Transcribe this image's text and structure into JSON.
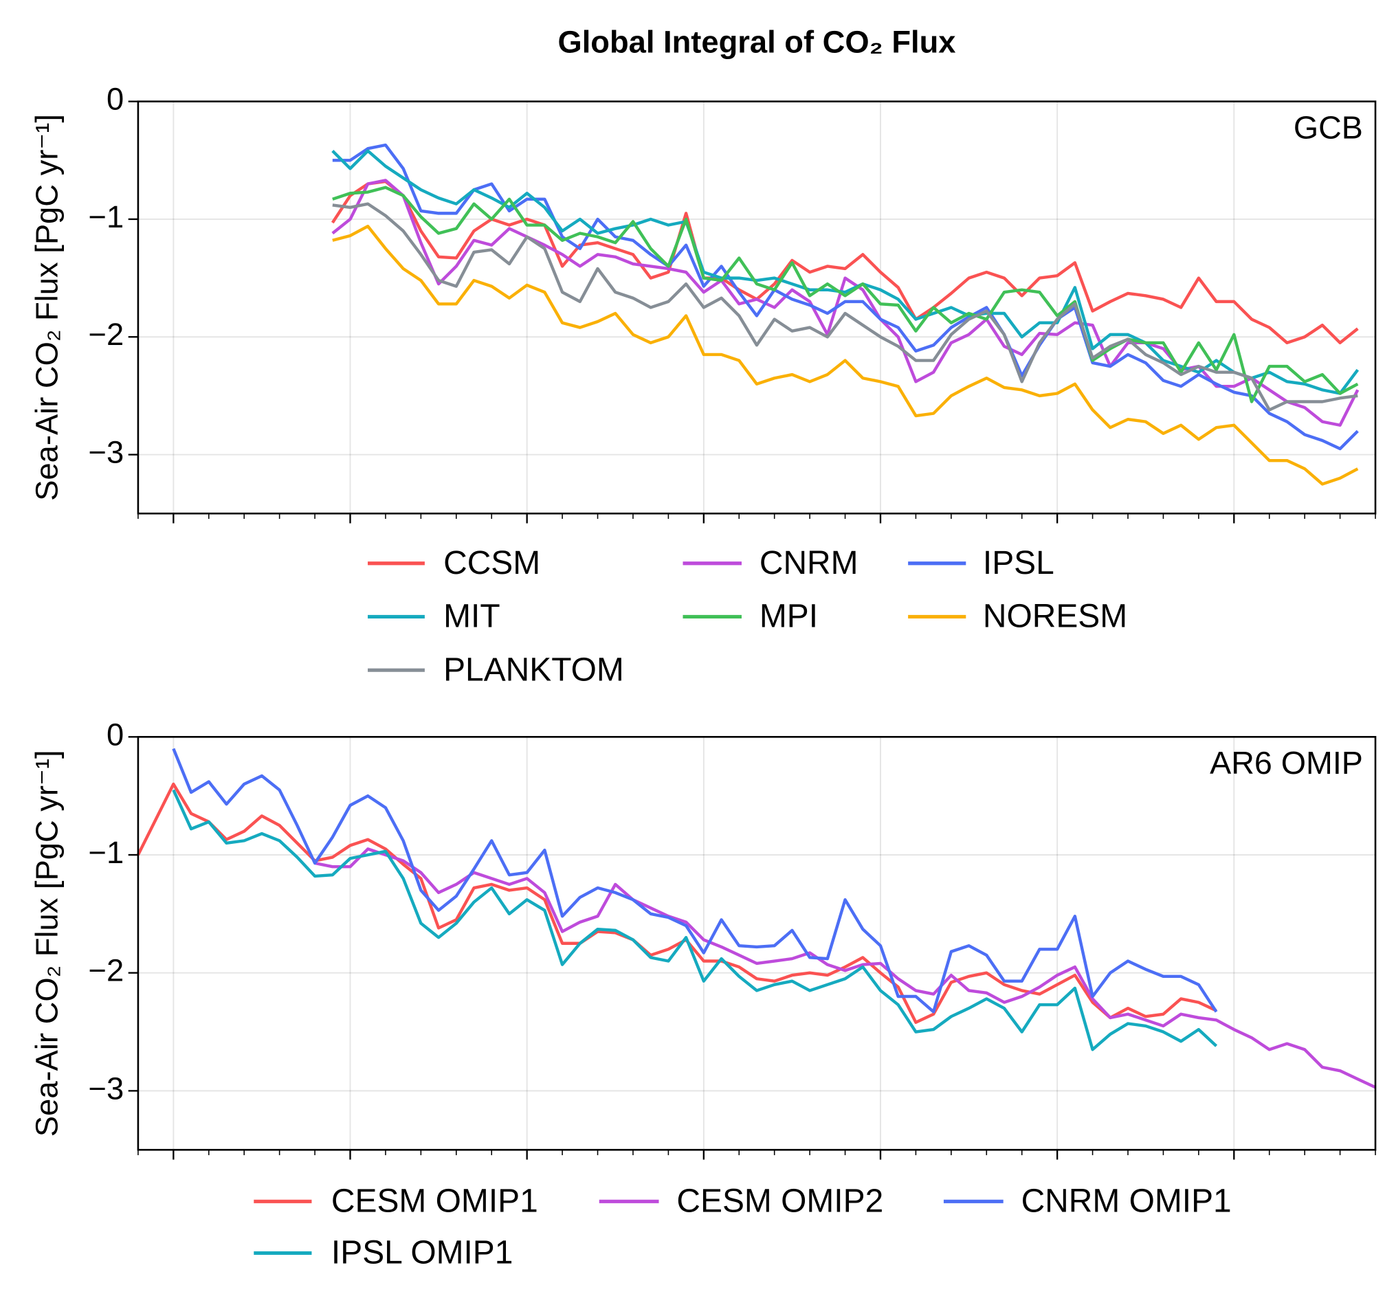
{
  "title": "Global Integral of CO₂ Flux",
  "chart_data": [
    {
      "type": "line",
      "panel_label": "GCB",
      "ylabel": "Sea-Air CO₂ Flux [PgC yr⁻¹]",
      "ylim": [
        -3.5,
        0
      ],
      "yticks": [
        0,
        {
          "value": -1,
          "label": "−1"
        },
        {
          "value": -2,
          "label": "−2"
        },
        {
          "value": -3,
          "label": "−3"
        }
      ],
      "grid": true,
      "series": [
        {
          "name": "CCSM",
          "color": "#fa5252",
          "values": [
            null,
            null,
            null,
            null,
            null,
            null,
            null,
            null,
            null,
            null,
            null,
            -1.03,
            -0.8,
            -0.7,
            -0.68,
            -0.8,
            -1.1,
            -1.32,
            -1.33,
            -1.1,
            -1.0,
            -1.05,
            -1.0,
            -1.05,
            -1.4,
            -1.22,
            -1.2,
            -1.25,
            -1.3,
            -1.5,
            -1.45,
            -0.95,
            -1.5,
            -1.5,
            -1.6,
            -1.68,
            -1.55,
            -1.35,
            -1.45,
            -1.4,
            -1.42,
            -1.3,
            -1.45,
            -1.58,
            -1.85,
            -1.75,
            -1.63,
            -1.5,
            -1.45,
            -1.5,
            -1.65,
            -1.5,
            -1.48,
            -1.37,
            -1.78,
            -1.7,
            -1.63,
            -1.65,
            -1.68,
            -1.75,
            -1.5,
            -1.7,
            -1.7,
            -1.85,
            -1.92,
            -2.05,
            -2.0,
            -1.9,
            -2.05,
            -1.93,
            null
          ]
        },
        {
          "name": "CNRM",
          "color": "#be4bdb",
          "values": [
            null,
            null,
            null,
            null,
            null,
            null,
            null,
            null,
            null,
            null,
            null,
            -1.12,
            -1.0,
            -0.7,
            -0.67,
            -0.8,
            -1.2,
            -1.55,
            -1.4,
            -1.18,
            -1.22,
            -1.08,
            -1.15,
            -1.22,
            -1.3,
            -1.4,
            -1.3,
            -1.32,
            -1.38,
            -1.4,
            -1.42,
            -1.45,
            -1.62,
            -1.52,
            -1.72,
            -1.68,
            -1.75,
            -1.6,
            -1.7,
            -1.98,
            -1.5,
            -1.6,
            -1.85,
            -2.0,
            -2.38,
            -2.3,
            -2.05,
            -1.98,
            -1.85,
            -2.08,
            -2.15,
            -1.97,
            -1.98,
            -1.88,
            -1.9,
            -2.25,
            -2.05,
            -2.05,
            -2.1,
            -2.28,
            -2.25,
            -2.42,
            -2.42,
            -2.35,
            -2.45,
            -2.55,
            -2.6,
            -2.72,
            -2.75,
            -2.45,
            null
          ]
        },
        {
          "name": "IPSL",
          "color": "#4c6ef5",
          "values": [
            null,
            null,
            null,
            null,
            null,
            null,
            null,
            null,
            null,
            null,
            null,
            -0.5,
            -0.5,
            -0.4,
            -0.37,
            -0.57,
            -0.93,
            -0.95,
            -0.95,
            -0.75,
            -0.7,
            -0.93,
            -0.83,
            -0.83,
            -1.15,
            -1.25,
            -1.0,
            -1.15,
            -1.18,
            -1.3,
            -1.4,
            -1.22,
            -1.57,
            -1.4,
            -1.62,
            -1.82,
            -1.6,
            -1.68,
            -1.73,
            -1.8,
            -1.7,
            -1.7,
            -1.85,
            -1.92,
            -2.12,
            -2.07,
            -1.92,
            -1.83,
            -1.75,
            -1.98,
            -2.33,
            -2.07,
            -1.85,
            -1.75,
            -2.22,
            -2.25,
            -2.15,
            -2.22,
            -2.37,
            -2.42,
            -2.32,
            -2.4,
            -2.47,
            -2.5,
            -2.65,
            -2.72,
            -2.83,
            -2.88,
            -2.95,
            -2.8,
            null
          ]
        },
        {
          "name": "MIT",
          "color": "#15aabf",
          "values": [
            null,
            null,
            null,
            null,
            null,
            null,
            null,
            null,
            null,
            null,
            null,
            -0.42,
            -0.57,
            -0.42,
            -0.55,
            -0.65,
            -0.75,
            -0.82,
            -0.87,
            -0.75,
            -0.82,
            -0.9,
            -0.78,
            -0.9,
            -1.1,
            -1.0,
            -1.12,
            -1.08,
            -1.05,
            -1.0,
            -1.05,
            -1.02,
            -1.45,
            -1.5,
            -1.5,
            -1.52,
            -1.5,
            -1.55,
            -1.6,
            -1.6,
            -1.62,
            -1.55,
            -1.6,
            -1.68,
            -1.85,
            -1.8,
            -1.75,
            -1.82,
            -1.8,
            -1.8,
            -2.0,
            -1.88,
            -1.88,
            -1.58,
            -2.1,
            -1.98,
            -1.98,
            -2.05,
            -2.2,
            -2.25,
            -2.3,
            -2.2,
            -2.3,
            -2.35,
            -2.3,
            -2.38,
            -2.4,
            -2.45,
            -2.48,
            -2.28,
            null
          ]
        },
        {
          "name": "MPI",
          "color": "#40c057",
          "values": [
            null,
            null,
            null,
            null,
            null,
            null,
            null,
            null,
            null,
            null,
            null,
            -0.83,
            -0.78,
            -0.77,
            -0.73,
            -0.8,
            -0.98,
            -1.12,
            -1.08,
            -0.87,
            -1.0,
            -0.83,
            -1.05,
            -1.05,
            -1.18,
            -1.12,
            -1.15,
            -1.2,
            -1.02,
            -1.25,
            -1.4,
            -1.0,
            -1.5,
            -1.52,
            -1.33,
            -1.55,
            -1.6,
            -1.37,
            -1.65,
            -1.55,
            -1.65,
            -1.55,
            -1.72,
            -1.73,
            -1.95,
            -1.75,
            -1.88,
            -1.8,
            -1.85,
            -1.62,
            -1.6,
            -1.62,
            -1.82,
            -1.7,
            -2.2,
            -2.1,
            -2.02,
            -2.05,
            -2.05,
            -2.3,
            -2.05,
            -2.28,
            -1.98,
            -2.55,
            -2.25,
            -2.25,
            -2.38,
            -2.32,
            -2.48,
            -2.4,
            null
          ]
        },
        {
          "name": "NORESM",
          "color": "#fab005",
          "values": [
            null,
            null,
            null,
            null,
            null,
            null,
            null,
            null,
            null,
            null,
            null,
            -1.18,
            -1.14,
            -1.06,
            -1.25,
            -1.42,
            -1.52,
            -1.72,
            -1.72,
            -1.52,
            -1.57,
            -1.67,
            -1.56,
            -1.62,
            -1.88,
            -1.92,
            -1.87,
            -1.8,
            -1.98,
            -2.05,
            -2.0,
            -1.82,
            -2.15,
            -2.15,
            -2.2,
            -2.4,
            -2.35,
            -2.32,
            -2.38,
            -2.32,
            -2.2,
            -2.35,
            -2.38,
            -2.42,
            -2.67,
            -2.65,
            -2.5,
            -2.42,
            -2.35,
            -2.43,
            -2.45,
            -2.5,
            -2.48,
            -2.4,
            -2.62,
            -2.77,
            -2.7,
            -2.72,
            -2.82,
            -2.75,
            -2.87,
            -2.77,
            -2.75,
            -2.9,
            -3.05,
            -3.05,
            -3.12,
            -3.25,
            -3.2,
            -3.12,
            null
          ]
        },
        {
          "name": "PLANKTOM",
          "color": "#868e96",
          "values": [
            null,
            null,
            null,
            null,
            null,
            null,
            null,
            null,
            null,
            null,
            null,
            -0.88,
            -0.9,
            -0.87,
            -0.97,
            -1.1,
            -1.3,
            -1.52,
            -1.57,
            -1.28,
            -1.26,
            -1.38,
            -1.15,
            -1.25,
            -1.62,
            -1.7,
            -1.42,
            -1.62,
            -1.67,
            -1.75,
            -1.7,
            -1.55,
            -1.75,
            -1.67,
            -1.82,
            -2.07,
            -1.85,
            -1.95,
            -1.92,
            -2.0,
            -1.8,
            -1.9,
            -2.0,
            -2.08,
            -2.2,
            -2.2,
            -1.98,
            -1.85,
            -1.78,
            -1.98,
            -2.38,
            -2.05,
            -1.85,
            -1.72,
            -2.18,
            -2.08,
            -2.02,
            -2.15,
            -2.22,
            -2.32,
            -2.25,
            -2.3,
            -2.3,
            -2.35,
            -2.62,
            -2.55,
            -2.55,
            -2.55,
            -2.52,
            -2.5,
            null
          ]
        }
      ]
    },
    {
      "type": "line",
      "panel_label": "AR6 OMIP",
      "ylabel": "Sea-Air CO₂ Flux [PgC yr⁻¹]",
      "ylim": [
        -3.5,
        0
      ],
      "yticks": [
        0,
        {
          "value": -1,
          "label": "−1"
        },
        {
          "value": -2,
          "label": "−2"
        },
        {
          "value": -3,
          "label": "−3"
        }
      ],
      "grid": true,
      "series": [
        {
          "name": "CESM OMIP1",
          "color": "#fa5252",
          "values": [
            -1.0,
            -0.7,
            -0.4,
            -0.65,
            -0.72,
            -0.87,
            -0.8,
            -0.67,
            -0.75,
            -0.9,
            -1.05,
            -1.02,
            -0.92,
            -0.87,
            -0.95,
            -1.08,
            -1.2,
            -1.62,
            -1.55,
            -1.28,
            -1.25,
            -1.3,
            -1.28,
            -1.38,
            -1.75,
            -1.75,
            -1.65,
            -1.66,
            -1.72,
            -1.85,
            -1.8,
            -1.72,
            -1.9,
            -1.9,
            -1.95,
            -2.05,
            -2.07,
            -2.02,
            -2.0,
            -2.02,
            -1.95,
            -1.87,
            -2.0,
            -2.12,
            -2.42,
            -2.35,
            -2.08,
            -2.03,
            -2.0,
            -2.1,
            -2.15,
            -2.18,
            -2.1,
            -2.02,
            -2.25,
            -2.38,
            -2.3,
            -2.37,
            -2.35,
            -2.22,
            -2.25,
            -2.32,
            null,
            null,
            null,
            null,
            null,
            null,
            null,
            null,
            null
          ]
        },
        {
          "name": "CESM OMIP2",
          "color": "#be4bdb",
          "values": [
            null,
            null,
            null,
            null,
            null,
            null,
            null,
            null,
            null,
            null,
            -1.07,
            -1.1,
            -1.1,
            -0.95,
            -1.0,
            -1.05,
            -1.15,
            -1.32,
            -1.25,
            -1.15,
            -1.2,
            -1.25,
            -1.2,
            -1.32,
            -1.65,
            -1.57,
            -1.52,
            -1.25,
            -1.38,
            -1.45,
            -1.52,
            -1.57,
            -1.72,
            -1.78,
            -1.85,
            -1.92,
            -1.9,
            -1.88,
            -1.83,
            -1.93,
            -1.98,
            -1.93,
            -1.92,
            -2.05,
            -2.15,
            -2.18,
            -2.02,
            -2.15,
            -2.17,
            -2.25,
            -2.2,
            -2.12,
            -2.02,
            -1.95,
            -2.22,
            -2.38,
            -2.35,
            -2.4,
            -2.45,
            -2.35,
            -2.38,
            -2.4,
            -2.48,
            -2.55,
            -2.65,
            -2.6,
            -2.65,
            -2.8,
            -2.83,
            -2.9,
            -2.97
          ]
        },
        {
          "name": "CNRM OMIP1",
          "color": "#4c6ef5",
          "values": [
            null,
            null,
            -0.1,
            -0.47,
            -0.38,
            -0.57,
            -0.4,
            -0.33,
            -0.45,
            -0.75,
            -1.07,
            -0.85,
            -0.58,
            -0.5,
            -0.6,
            -0.88,
            -1.3,
            -1.47,
            -1.35,
            -1.12,
            -0.88,
            -1.17,
            -1.15,
            -0.96,
            -1.52,
            -1.36,
            -1.28,
            -1.32,
            -1.38,
            -1.5,
            -1.53,
            -1.6,
            -1.83,
            -1.55,
            -1.77,
            -1.78,
            -1.77,
            -1.64,
            -1.87,
            -1.88,
            -1.38,
            -1.63,
            -1.77,
            -2.2,
            -2.2,
            -2.33,
            -1.82,
            -1.77,
            -1.85,
            -2.07,
            -2.07,
            -1.8,
            -1.8,
            -1.52,
            -2.2,
            -2.0,
            -1.9,
            -1.97,
            -2.03,
            -2.03,
            -2.1,
            -2.33,
            null,
            null,
            null,
            null,
            null,
            null,
            null,
            null,
            null
          ]
        },
        {
          "name": "IPSL OMIP1",
          "color": "#15aabf",
          "values": [
            null,
            null,
            -0.45,
            -0.78,
            -0.72,
            -0.9,
            -0.88,
            -0.82,
            -0.88,
            -1.02,
            -1.18,
            -1.17,
            -1.03,
            -1.0,
            -0.97,
            -1.2,
            -1.58,
            -1.7,
            -1.58,
            -1.4,
            -1.28,
            -1.5,
            -1.38,
            -1.47,
            -1.93,
            -1.75,
            -1.63,
            -1.64,
            -1.72,
            -1.87,
            -1.9,
            -1.7,
            -2.07,
            -1.88,
            -2.03,
            -2.15,
            -2.1,
            -2.07,
            -2.15,
            -2.1,
            -2.05,
            -1.95,
            -2.15,
            -2.27,
            -2.5,
            -2.48,
            -2.37,
            -2.3,
            -2.22,
            -2.3,
            -2.5,
            -2.27,
            -2.27,
            -2.13,
            -2.65,
            -2.52,
            -2.43,
            -2.45,
            -2.5,
            -2.58,
            -2.48,
            -2.62,
            null,
            null,
            null,
            null,
            null,
            null,
            null,
            null,
            null
          ]
        }
      ]
    }
  ]
}
